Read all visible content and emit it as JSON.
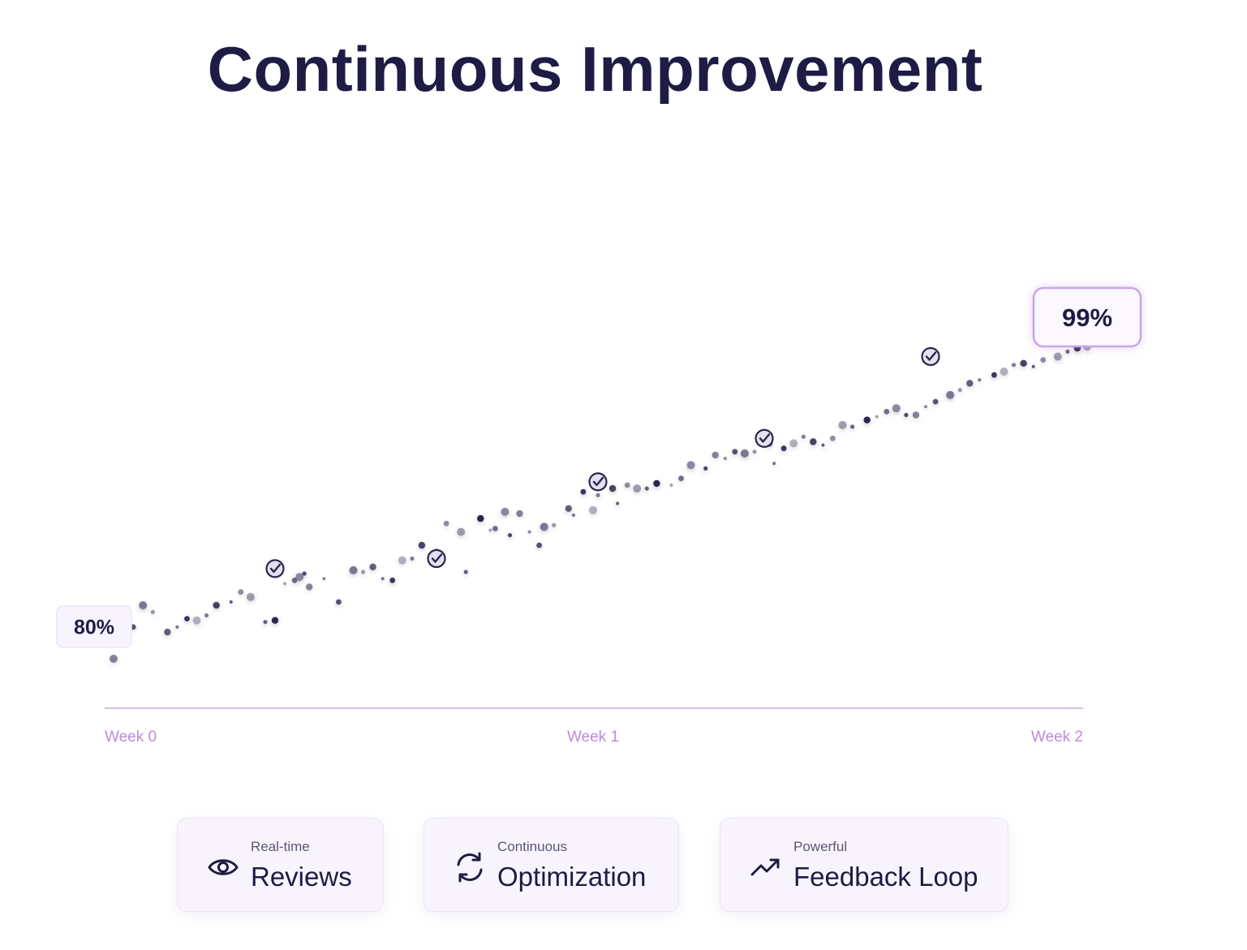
{
  "title": "Continuous Improvement",
  "chart_data": {
    "type": "scatter",
    "title": "Continuous Improvement",
    "xlabel": "",
    "ylabel": "",
    "x_unit": "weeks",
    "y_unit": "%",
    "xlim": [
      0,
      2
    ],
    "ylim": [
      75,
      102
    ],
    "x_ticks": [
      0,
      1,
      2
    ],
    "x_tick_labels": [
      "Week 0",
      "Week 1",
      "Week 2"
    ],
    "start_label": "80%",
    "end_label": "99%",
    "start_value": 80,
    "end_value": 99,
    "grid": false,
    "legend": "none",
    "points": [
      [
        0.01,
        80.0
      ],
      [
        0.03,
        82.1
      ],
      [
        0.05,
        81.9
      ],
      [
        0.07,
        83.2
      ],
      [
        0.09,
        82.8
      ],
      [
        0.12,
        81.6
      ],
      [
        0.14,
        81.9
      ],
      [
        0.16,
        82.4
      ],
      [
        0.18,
        82.3
      ],
      [
        0.2,
        82.6
      ],
      [
        0.22,
        83.2
      ],
      [
        0.25,
        83.4
      ],
      [
        0.27,
        84.0
      ],
      [
        0.29,
        83.7
      ],
      [
        0.32,
        82.2
      ],
      [
        0.34,
        82.3
      ],
      [
        0.36,
        84.5
      ],
      [
        0.38,
        84.7
      ],
      [
        0.39,
        84.9
      ],
      [
        0.4,
        85.1
      ],
      [
        0.41,
        84.3
      ],
      [
        0.44,
        84.8
      ],
      [
        0.47,
        83.4
      ],
      [
        0.5,
        85.3
      ],
      [
        0.52,
        85.2
      ],
      [
        0.54,
        85.5
      ],
      [
        0.56,
        84.8
      ],
      [
        0.58,
        84.7
      ],
      [
        0.6,
        85.9
      ],
      [
        0.62,
        86.0
      ],
      [
        0.64,
        86.8
      ],
      [
        0.67,
        86.5
      ],
      [
        0.69,
        88.1
      ],
      [
        0.72,
        87.6
      ],
      [
        0.73,
        85.2
      ],
      [
        0.76,
        88.4
      ],
      [
        0.78,
        87.7
      ],
      [
        0.79,
        87.8
      ],
      [
        0.81,
        88.8
      ],
      [
        0.82,
        87.4
      ],
      [
        0.84,
        88.7
      ],
      [
        0.86,
        87.6
      ],
      [
        0.88,
        86.8
      ],
      [
        0.89,
        87.9
      ],
      [
        0.91,
        88.0
      ],
      [
        0.94,
        89.0
      ],
      [
        0.95,
        88.6
      ],
      [
        0.97,
        90.0
      ],
      [
        0.99,
        88.9
      ],
      [
        1.0,
        89.8
      ],
      [
        1.03,
        90.2
      ],
      [
        1.04,
        89.3
      ],
      [
        1.06,
        90.4
      ],
      [
        1.08,
        90.2
      ],
      [
        1.1,
        90.2
      ],
      [
        1.12,
        90.5
      ],
      [
        1.15,
        90.4
      ],
      [
        1.17,
        90.8
      ],
      [
        1.19,
        91.6
      ],
      [
        1.22,
        91.4
      ],
      [
        1.24,
        92.2
      ],
      [
        1.26,
        92.0
      ],
      [
        1.28,
        92.4
      ],
      [
        1.3,
        92.3
      ],
      [
        1.32,
        92.4
      ],
      [
        1.35,
        92.9
      ],
      [
        1.36,
        91.7
      ],
      [
        1.38,
        92.6
      ],
      [
        1.4,
        92.9
      ],
      [
        1.42,
        93.3
      ],
      [
        1.44,
        93.0
      ],
      [
        1.46,
        92.8
      ],
      [
        1.48,
        93.2
      ],
      [
        1.5,
        94.0
      ],
      [
        1.52,
        93.9
      ],
      [
        1.55,
        94.3
      ],
      [
        1.57,
        94.5
      ],
      [
        1.59,
        94.8
      ],
      [
        1.61,
        95.0
      ],
      [
        1.63,
        94.6
      ],
      [
        1.65,
        94.6
      ],
      [
        1.67,
        95.1
      ],
      [
        1.69,
        95.4
      ],
      [
        1.72,
        95.8
      ],
      [
        1.74,
        96.1
      ],
      [
        1.76,
        96.5
      ],
      [
        1.78,
        96.7
      ],
      [
        1.81,
        97.0
      ],
      [
        1.83,
        97.2
      ],
      [
        1.85,
        97.6
      ],
      [
        1.87,
        97.7
      ],
      [
        1.89,
        97.5
      ],
      [
        1.91,
        97.9
      ],
      [
        1.94,
        98.1
      ],
      [
        1.96,
        98.4
      ],
      [
        1.98,
        98.6
      ],
      [
        2.0,
        98.7
      ]
    ],
    "milestones": [
      [
        0.34,
        85.4
      ],
      [
        0.67,
        86.0
      ],
      [
        1.0,
        90.6
      ],
      [
        1.34,
        93.2
      ],
      [
        1.68,
        98.1
      ]
    ]
  },
  "features": [
    {
      "kicker": "Real-time",
      "label": "Reviews",
      "icon": "eye-icon"
    },
    {
      "kicker": "Continuous",
      "label": "Optimization",
      "icon": "refresh-icon"
    },
    {
      "kicker": "Powerful",
      "label": "Feedback Loop",
      "icon": "trending-up-icon"
    }
  ],
  "colors": {
    "text": "#1e1b45",
    "accent": "#b98be0",
    "axis": "#c9a5e8",
    "point": "#3a3562",
    "card_bg": "#f8f4fd",
    "callout_border": "#c9a5e8"
  }
}
